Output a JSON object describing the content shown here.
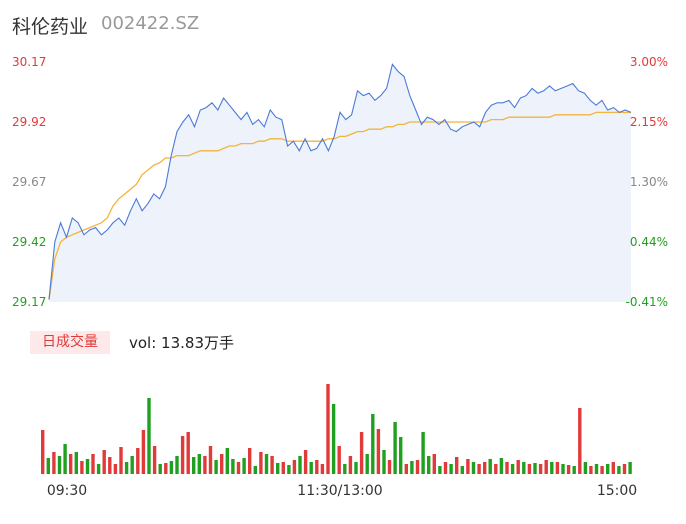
{
  "header": {
    "name": "科伦药业",
    "code": "002422.SZ"
  },
  "volume_header": {
    "badge": "日成交量",
    "text": "vol: 13.83万手"
  },
  "colors": {
    "up": "#e03a3a",
    "down": "#20a020",
    "price": "#4a7ad8",
    "avg": "#f3b43c",
    "fill": "#eef2fb",
    "neutral": "#888888"
  },
  "chart_data": [
    {
      "type": "line",
      "title": "",
      "series": [
        {
          "name": "",
          "values": [
            29.18,
            29.42,
            29.5,
            29.44,
            29.52,
            29.5,
            29.45,
            29.47,
            29.48,
            29.45,
            29.47,
            29.5,
            29.52,
            29.49,
            29.55,
            29.6,
            29.55,
            29.58,
            29.62,
            29.6,
            29.65,
            29.78,
            29.88,
            29.92,
            29.95,
            29.9,
            29.97,
            29.98,
            30.0,
            29.97,
            30.02,
            29.99,
            29.96,
            29.93,
            29.96,
            29.91,
            29.93,
            29.9,
            29.97,
            29.94,
            29.93,
            29.82,
            29.84,
            29.8,
            29.85,
            29.8,
            29.81,
            29.85,
            29.8,
            29.86,
            29.96,
            29.93,
            29.95,
            30.05,
            30.03,
            30.04,
            30.01,
            30.03,
            30.06,
            30.16,
            30.13,
            30.11,
            30.03,
            29.97,
            29.91,
            29.94,
            29.93,
            29.91,
            29.93,
            29.89,
            29.88,
            29.9,
            29.91,
            29.92,
            29.9,
            29.96,
            29.99,
            30.0,
            30.0,
            30.01,
            29.98,
            30.02,
            30.03,
            30.06,
            30.04,
            30.05,
            30.07,
            30.05,
            30.06,
            30.07,
            30.08,
            30.05,
            30.04,
            30.01,
            29.99,
            30.01,
            29.97,
            29.98,
            29.96,
            29.97,
            29.96
          ]
        },
        {
          "name": "",
          "values": [
            29.18,
            29.35,
            29.42,
            29.44,
            29.45,
            29.46,
            29.47,
            29.48,
            29.49,
            29.5,
            29.52,
            29.57,
            29.6,
            29.62,
            29.64,
            29.66,
            29.7,
            29.72,
            29.74,
            29.75,
            29.77,
            29.77,
            29.78,
            29.78,
            29.78,
            29.79,
            29.8,
            29.8,
            29.8,
            29.8,
            29.81,
            29.82,
            29.82,
            29.83,
            29.83,
            29.83,
            29.84,
            29.84,
            29.85,
            29.85,
            29.85,
            29.84,
            29.84,
            29.84,
            29.84,
            29.84,
            29.84,
            29.84,
            29.85,
            29.85,
            29.86,
            29.86,
            29.87,
            29.88,
            29.88,
            29.89,
            29.89,
            29.89,
            29.9,
            29.9,
            29.91,
            29.91,
            29.92,
            29.92,
            29.92,
            29.92,
            29.92,
            29.92,
            29.92,
            29.92,
            29.92,
            29.92,
            29.92,
            29.92,
            29.92,
            29.92,
            29.93,
            29.93,
            29.93,
            29.94,
            29.94,
            29.94,
            29.94,
            29.94,
            29.94,
            29.94,
            29.94,
            29.95,
            29.95,
            29.95,
            29.95,
            29.95,
            29.95,
            29.95,
            29.96,
            29.96,
            29.96,
            29.96,
            29.96,
            29.96,
            29.96
          ]
        }
      ],
      "ylim": [
        29.17,
        30.17
      ],
      "yticks_left": [
        "30.17",
        "29.92",
        "29.67",
        "29.42",
        "29.17"
      ],
      "yticks_right": [
        "3.00%",
        "2.15%",
        "1.30%",
        "0.44%",
        "-0.41%"
      ],
      "xticks": [
        "09:30",
        "11:30/13:00",
        "15:00"
      ],
      "grid": false
    },
    {
      "type": "bar",
      "title": "",
      "values": [
        44,
        16,
        22,
        18,
        30,
        20,
        22,
        13,
        15,
        20,
        10,
        24,
        17,
        10,
        27,
        12,
        18,
        26,
        44,
        76,
        28,
        10,
        11,
        13,
        18,
        38,
        42,
        17,
        20,
        18,
        28,
        14,
        20,
        26,
        15,
        12,
        16,
        26,
        8,
        22,
        20,
        18,
        11,
        12,
        9,
        14,
        18,
        24,
        12,
        14,
        10,
        90,
        70,
        28,
        10,
        18,
        12,
        42,
        20,
        60,
        45,
        24,
        14,
        52,
        37,
        10,
        13,
        14,
        42,
        18,
        20,
        8,
        12,
        10,
        17,
        8,
        15,
        12,
        10,
        12,
        15,
        10,
        16,
        12,
        10,
        14,
        12,
        10,
        11,
        10,
        14,
        12,
        12,
        10,
        9,
        8,
        66,
        12,
        8,
        10,
        8,
        10,
        12,
        8,
        10,
        12
      ],
      "up": [
        true,
        false,
        true,
        false,
        false,
        true,
        false,
        true,
        false,
        true,
        false,
        true,
        true,
        true,
        true,
        false,
        false,
        true,
        true,
        false,
        true,
        false,
        true,
        false,
        false,
        true,
        true,
        false,
        false,
        true,
        true,
        false,
        true,
        false,
        false,
        true,
        false,
        true,
        false,
        true,
        false,
        true,
        false,
        true,
        false,
        true,
        false,
        true,
        false,
        true,
        true,
        true,
        false,
        true,
        false,
        true,
        false,
        true,
        false,
        false,
        true,
        false,
        true,
        false,
        false,
        true,
        false,
        true,
        false,
        false,
        true,
        false,
        true,
        false,
        true,
        false,
        true,
        false,
        true,
        true,
        false,
        true,
        false,
        true,
        false,
        true,
        false,
        true,
        false,
        true,
        true,
        false,
        true,
        false,
        true,
        false,
        true,
        false,
        true,
        false,
        true,
        false,
        true,
        false,
        true,
        false
      ],
      "ylim": [
        0,
        90
      ]
    }
  ]
}
